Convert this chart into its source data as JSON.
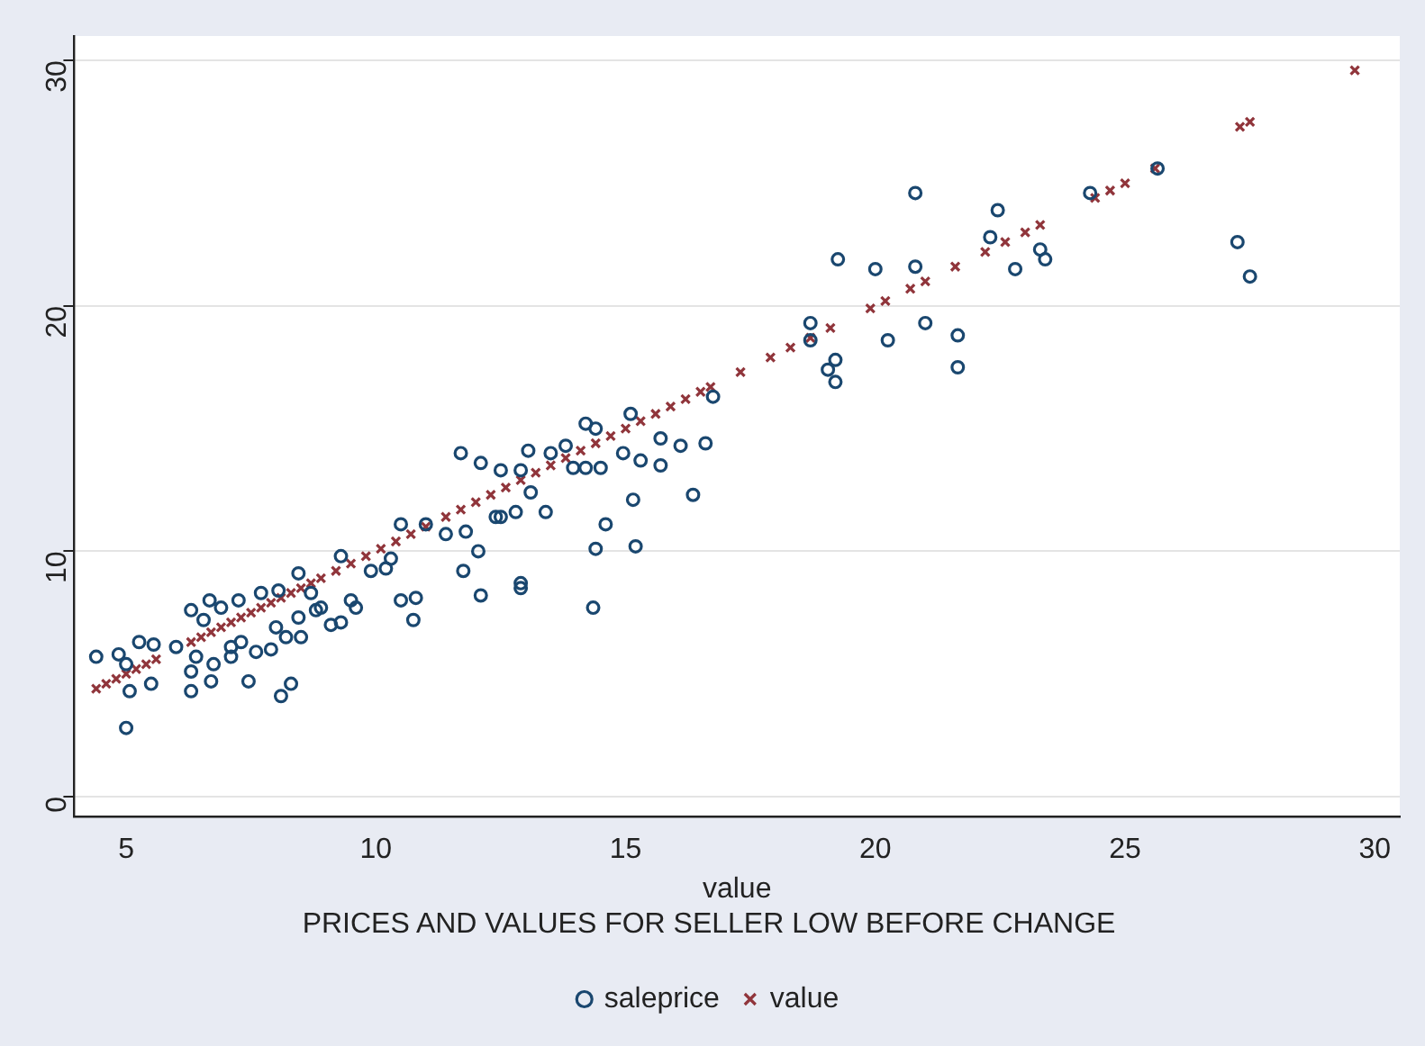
{
  "chart_data": {
    "type": "scatter",
    "title": "PRICES AND VALUES FOR SELLER LOW BEFORE CHANGE",
    "xlabel": "value",
    "xlim": [
      3.96,
      30.5
    ],
    "ylim": [
      -0.8,
      31
    ],
    "xticks": [
      5,
      10,
      15,
      20,
      25,
      30
    ],
    "yticks": [
      0,
      10,
      20,
      30
    ],
    "grid": "y",
    "legend": "bottom",
    "series": [
      {
        "name": "saleprice",
        "color": "#1a476f",
        "marker": "circle",
        "x": [
          4.4,
          4.85,
          5.0,
          5.07,
          5.0,
          5.26,
          5.55,
          5.5,
          6.0,
          6.3,
          6.55,
          6.67,
          6.9,
          6.3,
          6.3,
          6.4,
          6.7,
          6.75,
          7.1,
          7.1,
          7.25,
          7.3,
          7.45,
          7.6,
          7.7,
          7.9,
          8.05,
          8.0,
          8.1,
          8.3,
          8.2,
          8.45,
          8.45,
          8.5,
          8.7,
          8.8,
          8.9,
          9.1,
          9.3,
          9.3,
          9.5,
          9.6,
          9.9,
          10.2,
          10.3,
          10.5,
          11.0,
          10.5,
          10.8,
          10.75,
          11.4,
          11.7,
          12.1,
          11.8,
          12.05,
          11.75,
          12.1,
          12.4,
          12.5,
          12.9,
          13.05,
          13.5,
          13.8,
          14.2,
          14.4,
          13.95,
          14.2,
          14.5,
          15.1,
          14.95,
          15.3,
          15.7,
          16.1,
          15.7,
          16.6,
          16.75,
          13.1,
          12.5,
          12.8,
          13.4,
          12.9,
          12.9,
          14.6,
          14.4,
          15.2,
          15.15,
          16.35,
          14.35,
          18.7,
          18.7,
          19.05,
          19.2,
          19.2,
          19.25,
          20.0,
          20.25,
          20.8,
          20.8,
          21.0,
          21.65,
          21.65,
          22.3,
          22.45,
          22.8,
          23.3,
          23.4,
          24.3,
          25.65,
          27.25,
          27.5
        ],
        "values": [
          5.7,
          5.8,
          5.4,
          4.3,
          2.8,
          6.3,
          6.2,
          4.6,
          6.1,
          7.6,
          7.2,
          8.0,
          7.7,
          5.1,
          4.3,
          5.7,
          4.7,
          5.4,
          6.1,
          5.7,
          8.0,
          6.3,
          4.7,
          5.9,
          8.3,
          6.0,
          8.4,
          6.9,
          4.1,
          4.6,
          6.5,
          9.1,
          7.3,
          6.5,
          8.3,
          7.6,
          7.7,
          7.0,
          7.1,
          9.8,
          8.0,
          7.7,
          9.2,
          9.3,
          9.7,
          11.1,
          11.1,
          8.0,
          8.1,
          7.2,
          10.7,
          14.0,
          13.6,
          10.8,
          10.0,
          9.2,
          8.2,
          11.4,
          13.3,
          13.3,
          14.1,
          14.0,
          14.3,
          15.2,
          15.0,
          13.4,
          13.4,
          13.4,
          15.6,
          14.0,
          13.7,
          14.6,
          14.3,
          13.5,
          14.4,
          16.3,
          12.4,
          11.4,
          11.6,
          11.6,
          8.7,
          8.5,
          11.1,
          10.1,
          10.2,
          12.1,
          12.3,
          7.7,
          19.3,
          18.6,
          17.4,
          17.8,
          16.9,
          21.9,
          21.5,
          18.6,
          24.6,
          21.6,
          19.3,
          18.8,
          17.5,
          22.8,
          23.9,
          21.5,
          22.3,
          21.9,
          24.6,
          25.6,
          22.6,
          21.2
        ]
      },
      {
        "name": "value",
        "color": "#90353b",
        "marker": "cross",
        "x": [
          4.4,
          4.6,
          4.8,
          5.0,
          5.2,
          5.4,
          5.6,
          6.3,
          6.5,
          6.7,
          6.9,
          7.1,
          7.3,
          7.5,
          7.7,
          7.9,
          8.1,
          8.3,
          8.5,
          8.7,
          8.9,
          9.2,
          9.5,
          9.8,
          10.1,
          10.4,
          10.7,
          11.0,
          11.4,
          11.7,
          12.0,
          12.3,
          12.6,
          12.9,
          13.2,
          13.5,
          13.8,
          14.1,
          14.4,
          14.7,
          15.0,
          15.3,
          15.6,
          15.9,
          16.2,
          16.5,
          16.7,
          17.3,
          17.9,
          18.3,
          18.7,
          19.1,
          19.9,
          20.2,
          20.7,
          21.0,
          21.6,
          22.2,
          22.6,
          23.0,
          23.3,
          24.4,
          24.7,
          25.0,
          25.6,
          27.3,
          27.5,
          29.6
        ],
        "values": [
          4.4,
          4.6,
          4.8,
          5.0,
          5.2,
          5.4,
          5.6,
          6.3,
          6.5,
          6.7,
          6.9,
          7.1,
          7.3,
          7.5,
          7.7,
          7.9,
          8.1,
          8.3,
          8.5,
          8.7,
          8.9,
          9.2,
          9.5,
          9.8,
          10.1,
          10.4,
          10.7,
          11.0,
          11.4,
          11.7,
          12.0,
          12.3,
          12.6,
          12.9,
          13.2,
          13.5,
          13.8,
          14.1,
          14.4,
          14.7,
          15.0,
          15.3,
          15.6,
          15.9,
          16.2,
          16.5,
          16.7,
          17.3,
          17.9,
          18.3,
          18.7,
          19.1,
          19.9,
          20.2,
          20.7,
          21.0,
          21.6,
          22.2,
          22.6,
          23.0,
          23.3,
          24.4,
          24.7,
          25.0,
          25.6,
          27.3,
          27.5,
          29.6
        ]
      }
    ]
  }
}
